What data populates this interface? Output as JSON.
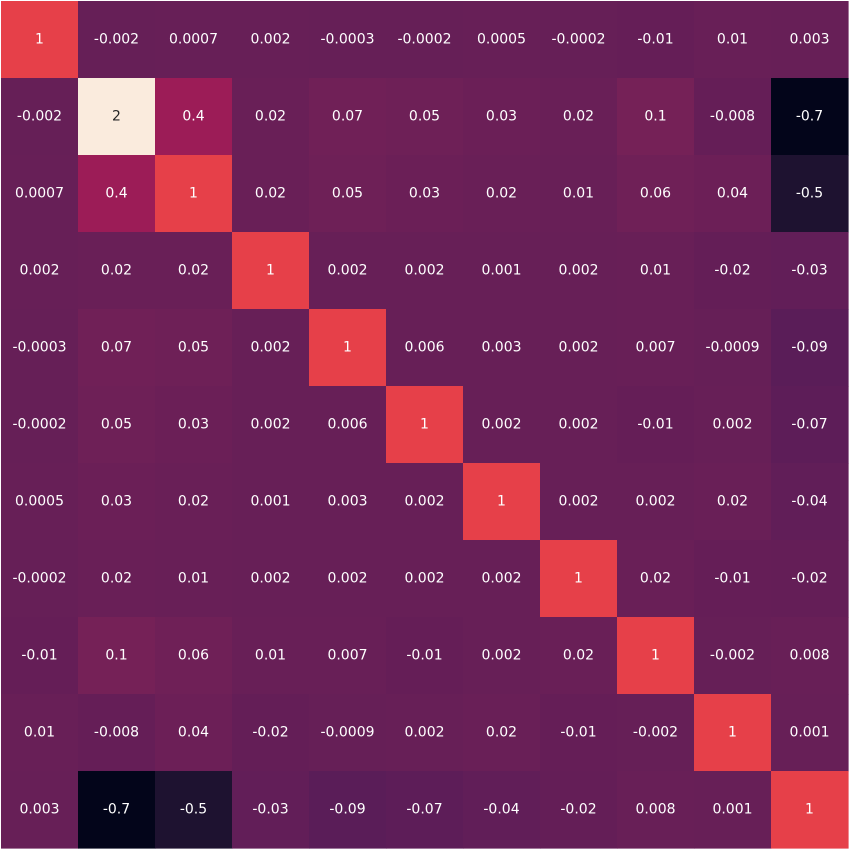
{
  "chart_data": {
    "type": "heatmap",
    "title": "",
    "xlabel": "",
    "ylabel": "",
    "colormap": "rocket",
    "vmin": -0.7,
    "vmax": 2,
    "values": [
      [
        1,
        -0.002,
        0.0007,
        0.002,
        -0.0003,
        -0.0002,
        0.0005,
        -0.0002,
        -0.01,
        0.01,
        0.003
      ],
      [
        -0.002,
        2,
        0.4,
        0.02,
        0.07,
        0.05,
        0.03,
        0.02,
        0.1,
        -0.008,
        -0.7
      ],
      [
        0.0007,
        0.4,
        1,
        0.02,
        0.05,
        0.03,
        0.02,
        0.01,
        0.06,
        0.04,
        -0.5
      ],
      [
        0.002,
        0.02,
        0.02,
        1,
        0.002,
        0.002,
        0.001,
        0.002,
        0.01,
        -0.02,
        -0.03
      ],
      [
        -0.0003,
        0.07,
        0.05,
        0.002,
        1,
        0.006,
        0.003,
        0.002,
        0.007,
        -0.0009,
        -0.09
      ],
      [
        -0.0002,
        0.05,
        0.03,
        0.002,
        0.006,
        1,
        0.002,
        0.002,
        -0.01,
        0.002,
        -0.07
      ],
      [
        0.0005,
        0.03,
        0.02,
        0.001,
        0.003,
        0.002,
        1,
        0.002,
        0.002,
        0.02,
        -0.04
      ],
      [
        -0.0002,
        0.02,
        0.01,
        0.002,
        0.002,
        0.002,
        0.002,
        1,
        0.02,
        -0.01,
        -0.02
      ],
      [
        -0.01,
        0.1,
        0.06,
        0.01,
        0.007,
        -0.01,
        0.002,
        0.02,
        1,
        -0.002,
        0.008
      ],
      [
        0.01,
        -0.008,
        0.04,
        -0.02,
        -0.0009,
        0.002,
        0.02,
        -0.01,
        -0.002,
        1,
        0.001
      ],
      [
        0.003,
        -0.7,
        -0.5,
        -0.03,
        -0.09,
        -0.07,
        -0.04,
        -0.02,
        0.008,
        0.001,
        1
      ]
    ],
    "labels": [
      [
        "1",
        "-0.002",
        "0.0007",
        "0.002",
        "-0.0003",
        "-0.0002",
        "0.0005",
        "-0.0002",
        "-0.01",
        "0.01",
        "0.003"
      ],
      [
        "-0.002",
        "2",
        "0.4",
        "0.02",
        "0.07",
        "0.05",
        "0.03",
        "0.02",
        "0.1",
        "-0.008",
        "-0.7"
      ],
      [
        "0.0007",
        "0.4",
        "1",
        "0.02",
        "0.05",
        "0.03",
        "0.02",
        "0.01",
        "0.06",
        "0.04",
        "-0.5"
      ],
      [
        "0.002",
        "0.02",
        "0.02",
        "1",
        "0.002",
        "0.002",
        "0.001",
        "0.002",
        "0.01",
        "-0.02",
        "-0.03"
      ],
      [
        "-0.0003",
        "0.07",
        "0.05",
        "0.002",
        "1",
        "0.006",
        "0.003",
        "0.002",
        "0.007",
        "-0.0009",
        "-0.09"
      ],
      [
        "-0.0002",
        "0.05",
        "0.03",
        "0.002",
        "0.006",
        "1",
        "0.002",
        "0.002",
        "-0.01",
        "0.002",
        "-0.07"
      ],
      [
        "0.0005",
        "0.03",
        "0.02",
        "0.001",
        "0.003",
        "0.002",
        "1",
        "0.002",
        "0.002",
        "0.02",
        "-0.04"
      ],
      [
        "-0.0002",
        "0.02",
        "0.01",
        "0.002",
        "0.002",
        "0.002",
        "0.002",
        "1",
        "0.02",
        "-0.01",
        "-0.02"
      ],
      [
        "-0.01",
        "0.1",
        "0.06",
        "0.01",
        "0.007",
        "-0.01",
        "0.002",
        "0.02",
        "1",
        "-0.002",
        "0.008"
      ],
      [
        "0.01",
        "-0.008",
        "0.04",
        "-0.02",
        "-0.0009",
        "0.002",
        "0.02",
        "-0.01",
        "-0.002",
        "1",
        "0.001"
      ],
      [
        "0.003",
        "-0.7",
        "-0.5",
        "-0.03",
        "-0.09",
        "-0.07",
        "-0.04",
        "-0.02",
        "0.008",
        "0.001",
        "1"
      ]
    ],
    "colorbar": false,
    "grid": false,
    "legend": "none"
  }
}
